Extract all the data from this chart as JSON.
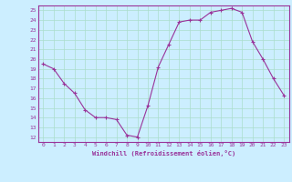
{
  "x": [
    0,
    1,
    2,
    3,
    4,
    5,
    6,
    7,
    8,
    9,
    10,
    11,
    12,
    13,
    14,
    15,
    16,
    17,
    18,
    19,
    20,
    21,
    22,
    23
  ],
  "y": [
    19.5,
    19.0,
    17.5,
    16.5,
    14.8,
    14.0,
    14.0,
    13.8,
    12.2,
    12.0,
    15.2,
    19.2,
    21.5,
    23.8,
    24.0,
    24.0,
    24.8,
    25.0,
    25.2,
    24.8,
    21.8,
    20.0,
    18.0,
    16.3
  ],
  "line_color": "#993399",
  "marker": "+",
  "bg_color": "#cceeff",
  "grid_color": "#aaddcc",
  "xlabel": "Windchill (Refroidissement éolien,°C)",
  "ylabel_ticks": [
    12,
    13,
    14,
    15,
    16,
    17,
    18,
    19,
    20,
    21,
    22,
    23,
    24,
    25
  ],
  "xlim": [
    -0.5,
    23.5
  ],
  "ylim": [
    11.5,
    25.5
  ],
  "tick_color": "#993399",
  "font_color": "#993399"
}
